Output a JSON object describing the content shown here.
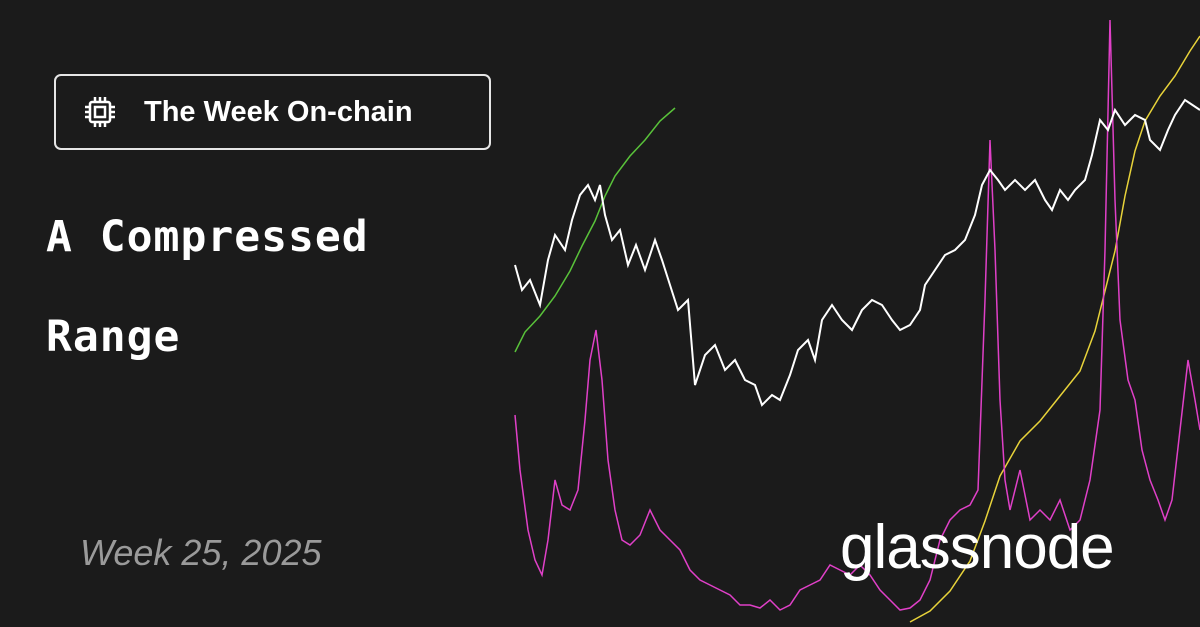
{
  "badge": {
    "label": "The Week On-chain"
  },
  "title": {
    "lines": [
      "A Compressed",
      "Range"
    ]
  },
  "date": "Week 25, 2025",
  "brand": "glassnode"
}
